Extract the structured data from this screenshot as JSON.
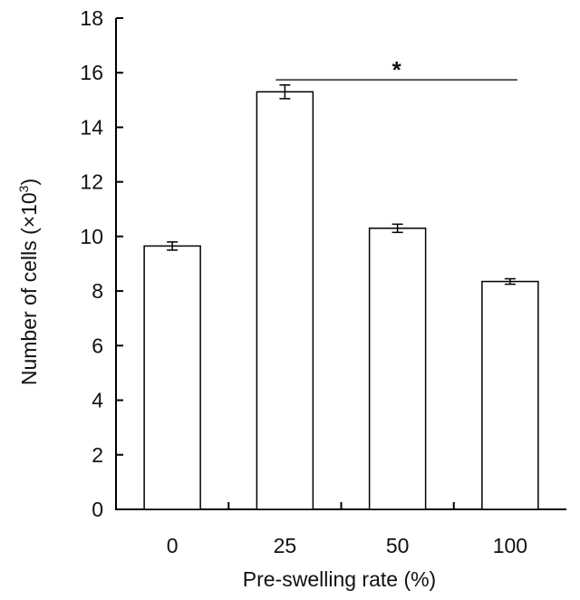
{
  "chart_data": {
    "type": "bar",
    "title": "",
    "xlabel": "Pre-swelling rate (%)",
    "ylabel": "Number of cells (×10",
    "ylabel_superscript": "3",
    "ylabel_suffix": ")",
    "categories": [
      "0",
      "25",
      "50",
      "100"
    ],
    "values": [
      9.65,
      15.3,
      10.3,
      8.35
    ],
    "errors": [
      0.15,
      0.25,
      0.15,
      0.1
    ],
    "ylim": [
      0,
      18
    ],
    "yticks": [
      "0",
      "2",
      "4",
      "6",
      "8",
      "10",
      "12",
      "14",
      "16",
      "18"
    ],
    "grid": false,
    "bar_fill": "#ffffff",
    "bar_stroke": "#000000",
    "annotations": [
      {
        "text": "*",
        "from_category": "25",
        "to_category": "100",
        "y": 16.4
      }
    ]
  }
}
